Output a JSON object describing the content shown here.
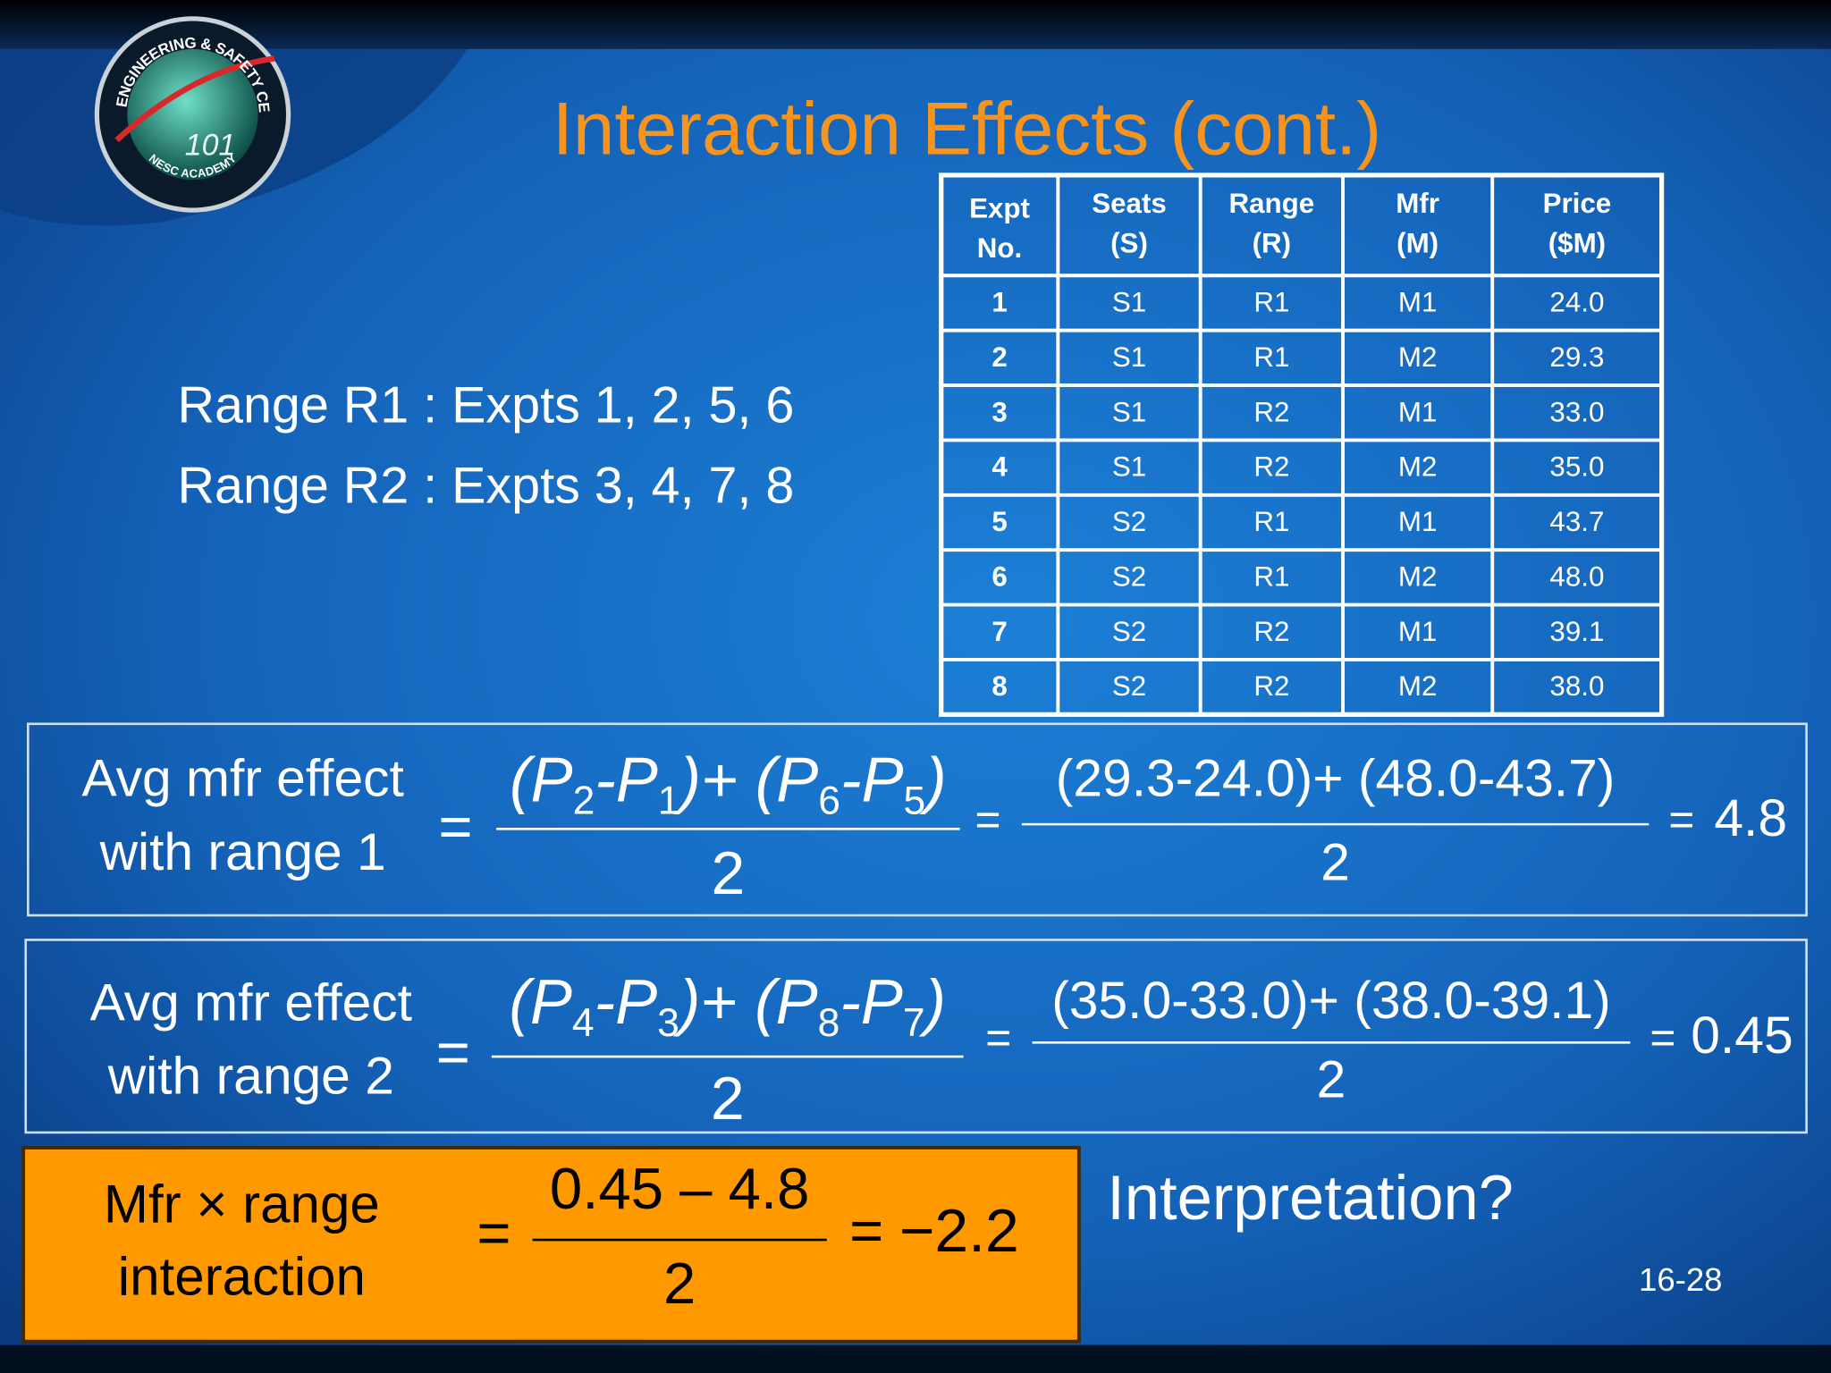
{
  "logo": {
    "ring_text": "NASA ENGINEERING & SAFETY CENTER",
    "bottom_text": "NESC ACADEMY",
    "number": "101"
  },
  "title": "Interaction Effects (cont.)",
  "ranges": [
    "Range R1 : Expts 1, 2, 5, 6",
    "Range R2 : Expts 3, 4, 7, 8"
  ],
  "table": {
    "header": [
      [
        "Expt",
        "No."
      ],
      [
        "Seats",
        "(S)"
      ],
      [
        "Range",
        "(R)"
      ],
      [
        "Mfr",
        "(M)"
      ],
      [
        "Price",
        "($M)"
      ]
    ],
    "rows": [
      [
        "1",
        "S1",
        "R1",
        "M1",
        "24.0"
      ],
      [
        "2",
        "S1",
        "R1",
        "M2",
        "29.3"
      ],
      [
        "3",
        "S1",
        "R2",
        "M1",
        "33.0"
      ],
      [
        "4",
        "S1",
        "R2",
        "M2",
        "35.0"
      ],
      [
        "5",
        "S2",
        "R1",
        "M1",
        "43.7"
      ],
      [
        "6",
        "S2",
        "R1",
        "M2",
        "48.0"
      ],
      [
        "7",
        "S2",
        "R2",
        "M1",
        "39.1"
      ],
      [
        "8",
        "S2",
        "R2",
        "M2",
        "38.0"
      ]
    ]
  },
  "equals_sign": "=",
  "equations": [
    {
      "label": [
        "Avg mfr effect",
        "with range 1"
      ],
      "symbolic_numerator": [
        {
          "text": "(P"
        },
        {
          "sub": "2"
        },
        {
          "text": "-P"
        },
        {
          "sub": "1"
        },
        {
          "text": ")+ (P"
        },
        {
          "sub": "6"
        },
        {
          "text": "-P"
        },
        {
          "sub": "5"
        },
        {
          "text": ")"
        }
      ],
      "symbolic_denominator": "2",
      "numeric_numerator": "(29.3-24.0)+ (48.0-43.7)",
      "numeric_denominator": "2",
      "result": "4.8"
    },
    {
      "label": [
        "Avg mfr effect",
        "with range 2"
      ],
      "symbolic_numerator": [
        {
          "text": "(P"
        },
        {
          "sub": "4"
        },
        {
          "text": "-P"
        },
        {
          "sub": "3"
        },
        {
          "text": ")+ (P"
        },
        {
          "sub": "8"
        },
        {
          "text": "-P"
        },
        {
          "sub": "7"
        },
        {
          "text": ")"
        }
      ],
      "symbolic_denominator": "2",
      "numeric_numerator": "(35.0-33.0)+ (38.0-39.1)",
      "numeric_denominator": "2",
      "result": "0.45"
    }
  ],
  "interaction": {
    "label": [
      "Mfr × range",
      "interaction"
    ],
    "numerator": "0.45 – 4.8",
    "denominator": "2",
    "result": "−2.2"
  },
  "question": "Interpretation?",
  "page_number": "16-28"
}
